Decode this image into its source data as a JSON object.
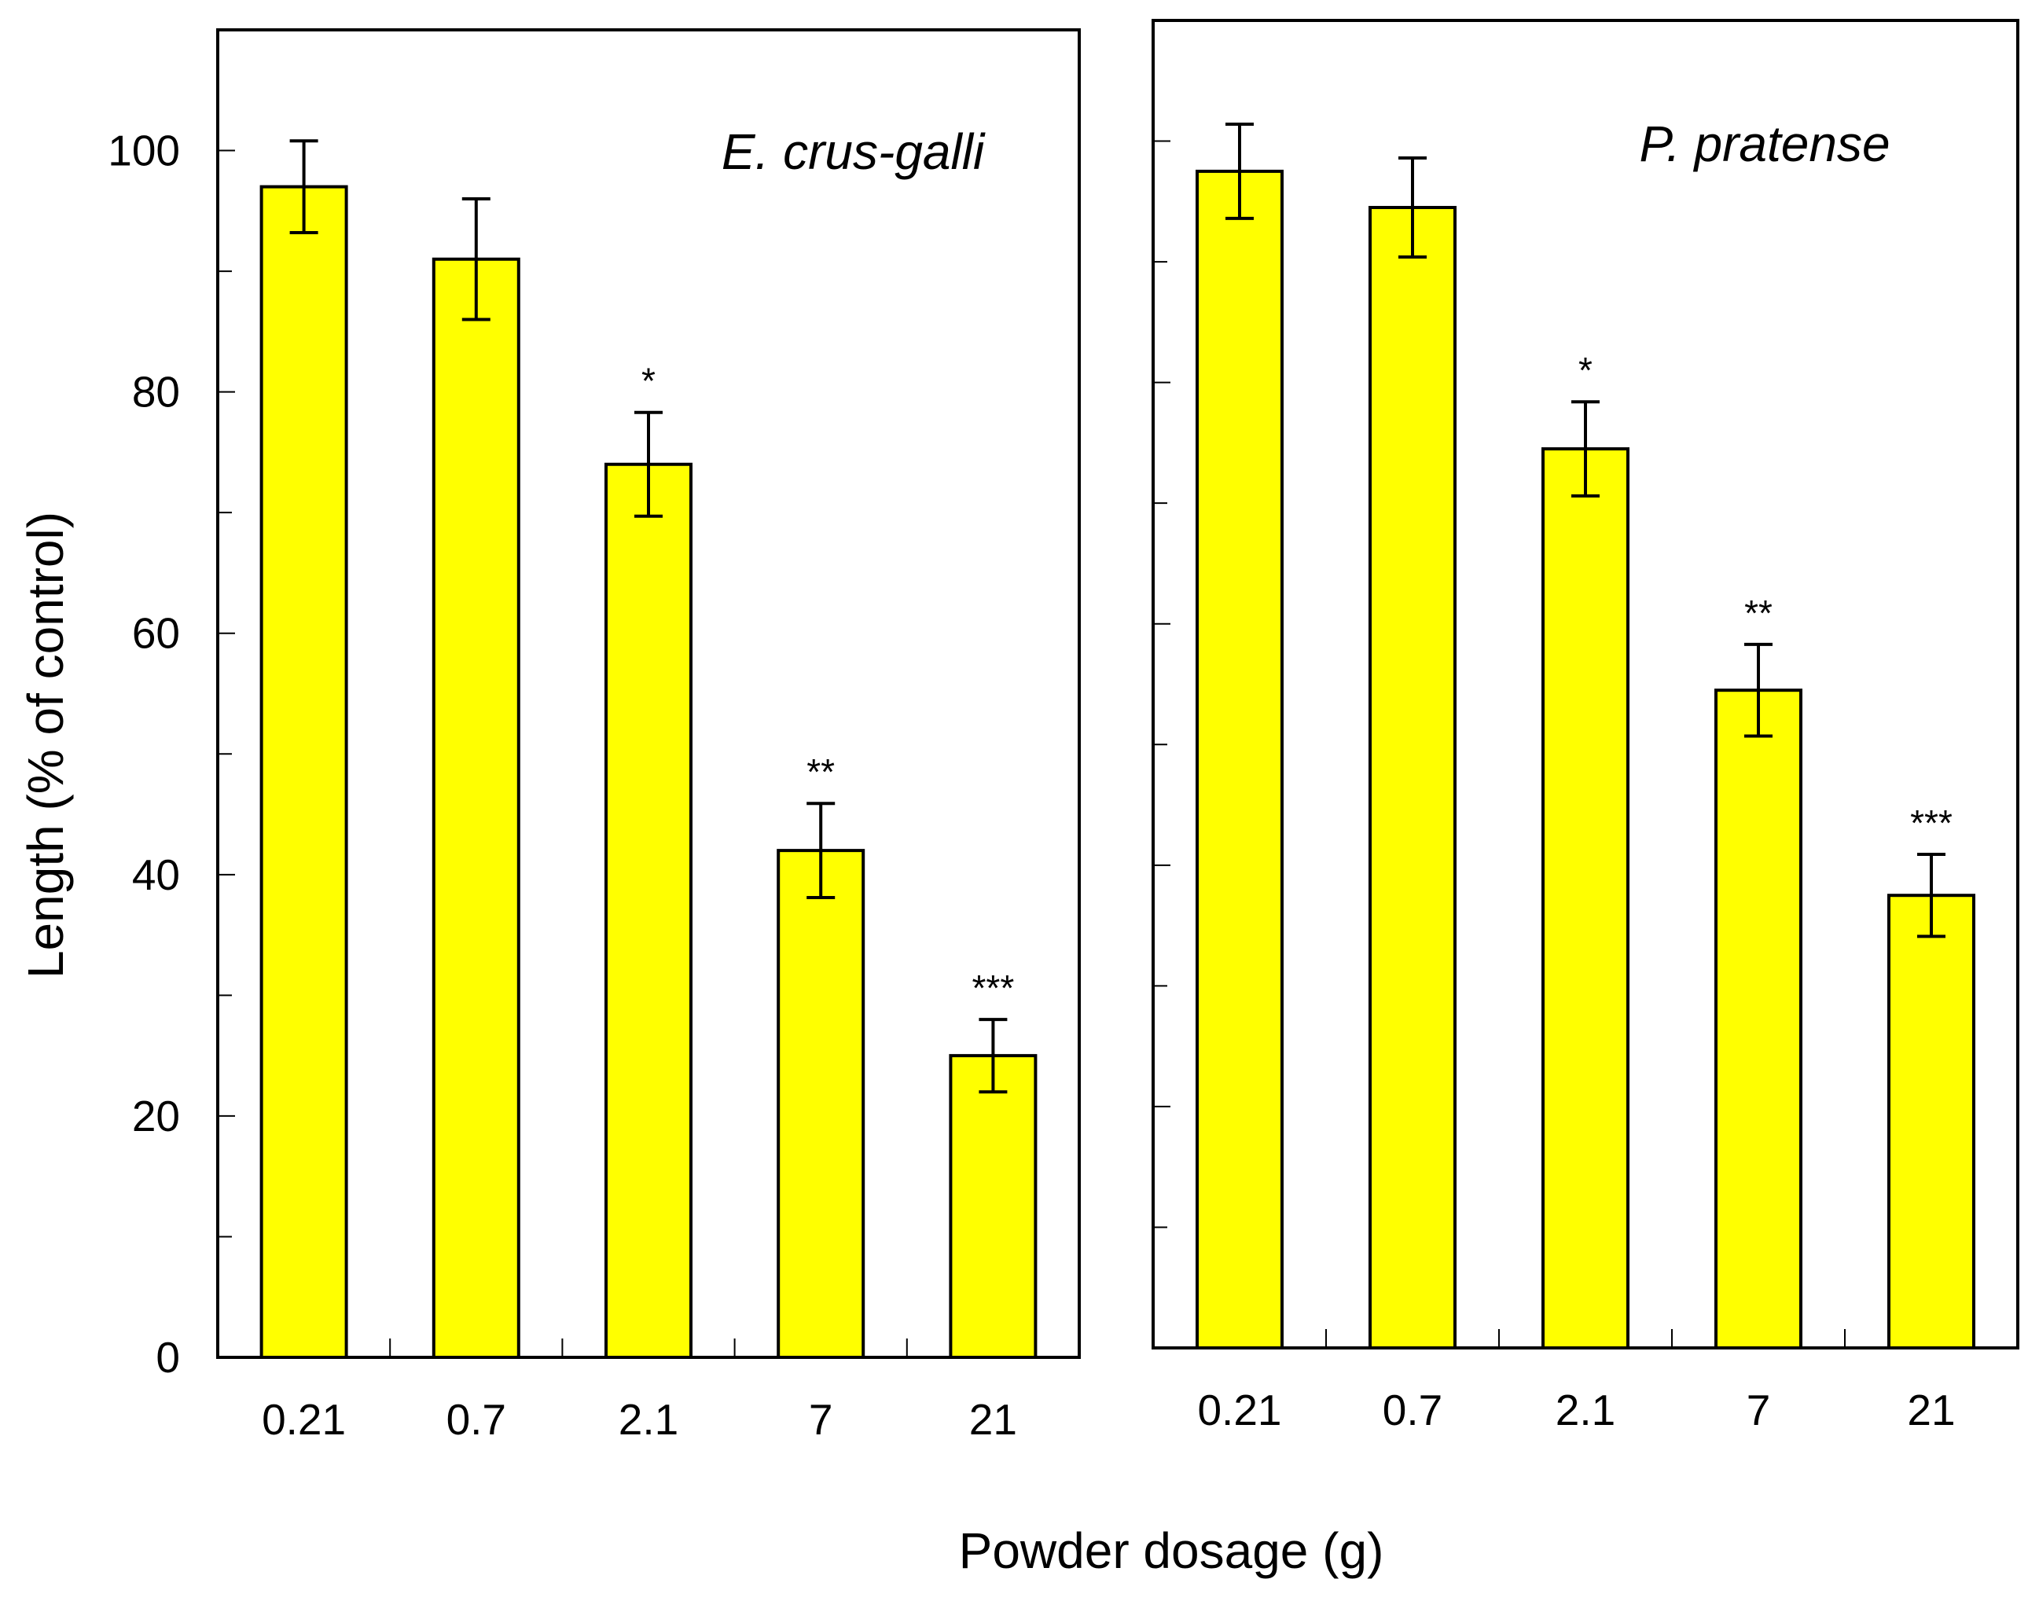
{
  "chart_data": [
    {
      "type": "bar",
      "title": "E. crus-galli",
      "categories": [
        "0.21",
        "0.7",
        "2.1",
        "7",
        "21"
      ],
      "values": [
        97,
        91,
        74,
        42,
        25
      ],
      "errors": [
        3.8,
        5.0,
        4.3,
        3.9,
        3.0
      ],
      "significance": [
        "",
        "",
        "*",
        "**",
        "***"
      ],
      "ylabel": "Length  (% of control)",
      "yticks": [
        0,
        20,
        40,
        60,
        80,
        100
      ],
      "ytick_labels": [
        "0",
        "20",
        "40",
        "60",
        "80",
        "100"
      ],
      "ylim": [
        0,
        110
      ],
      "bar_color": "#ffff00"
    },
    {
      "type": "bar",
      "title": "P. pratense",
      "categories": [
        "0.21",
        "0.7",
        "2.1",
        "7",
        "21"
      ],
      "values": [
        97.5,
        94.5,
        74.5,
        54.5,
        37.5
      ],
      "errors": [
        3.9,
        4.1,
        3.9,
        3.8,
        3.4
      ],
      "significance": [
        "",
        "",
        "*",
        "**",
        "***"
      ],
      "ylim": [
        0,
        110
      ],
      "bar_color": "#ffff00"
    }
  ],
  "xlabel": "Powder dosage (g)"
}
